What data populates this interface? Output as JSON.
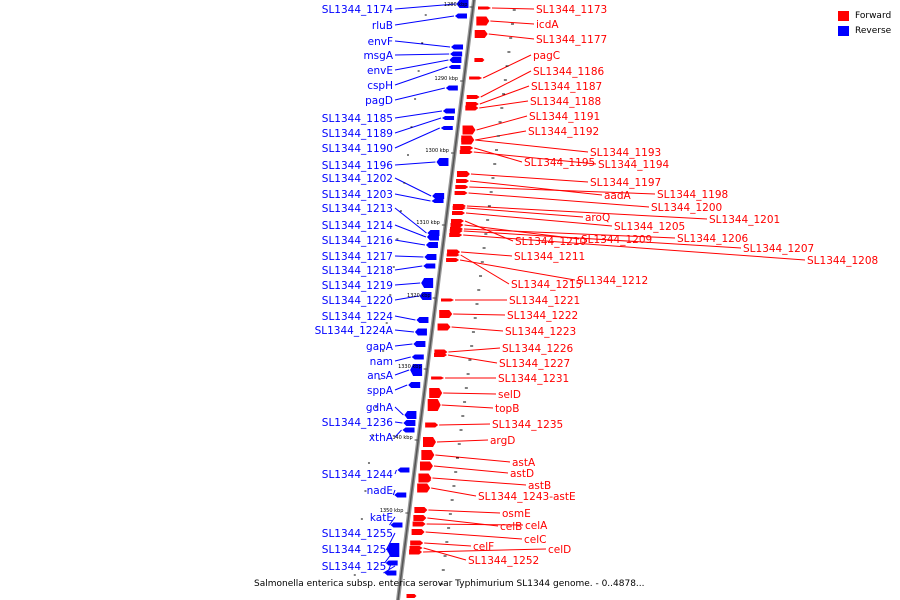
{
  "legend": {
    "forward_label": "Forward",
    "reverse_label": "Reverse",
    "forward_color": "#ff0000",
    "reverse_color": "#0000ff"
  },
  "caption": "Salmonella enterica subsp. enterica serovar Typhimurium SL1344 genome. - 0..4878...",
  "axis_ticks": [
    "1280 kbp",
    "1290 kbp",
    "1300 kbp",
    "1310 kbp",
    "1320 kbp",
    "1330 kbp",
    "1340 kbp",
    "1350 kbp"
  ],
  "reverse_genes": [
    "SL1344_1174",
    "rluB",
    "envF",
    "msgA",
    "envE",
    "cspH",
    "pagD",
    "SL1344_1185",
    "SL1344_1189",
    "SL1344_1190",
    "SL1344_1196",
    "SL1344_1202",
    "SL1344_1203",
    "SL1344_1213",
    "SL1344_1214",
    "SL1344_1216",
    "SL1344_1217",
    "SL1344_1218",
    "SL1344_1219",
    "SL1344_1220",
    "SL1344_1224",
    "SL1344_1224A",
    "gapA",
    "nam",
    "ansA",
    "sppA",
    "gdhA",
    "SL1344_1236",
    "xthA",
    "SL1344_1244",
    "nadE",
    "katE",
    "SL1344_1255",
    "SL1344_1256",
    "SL1344_1257"
  ],
  "forward_genes": [
    "SL1344_1173",
    "icdA",
    "SL1344_1177",
    "pagC",
    "SL1344_1186",
    "SL1344_1187",
    "SL1344_1188",
    "SL1344_1191",
    "SL1344_1192",
    "SL1344_1193",
    "SL1344_1195",
    "SL1344_1194",
    "SL1344_1197",
    "aadA",
    "SL1344_1198",
    "SL1344_1200",
    "aroQ",
    "SL1344_1201",
    "SL1344_1205",
    "SL1344_1210",
    "SL1344_1209",
    "SL1344_1206",
    "SL1344_1207",
    "SL1344_1208",
    "SL1344_1211",
    "SL1344_1215",
    "SL1344_1212",
    "SL1344_1221",
    "SL1344_1222",
    "SL1344_1223",
    "SL1344_1226",
    "SL1344_1227",
    "SL1344_1231",
    "selD",
    "topB",
    "SL1344_1235",
    "argD",
    "astA",
    "astD",
    "astB",
    "SL1344_1243-astE",
    "osmE",
    "celB",
    "celA",
    "celC",
    "celF",
    "celD",
    "SL1344_1252"
  ]
}
